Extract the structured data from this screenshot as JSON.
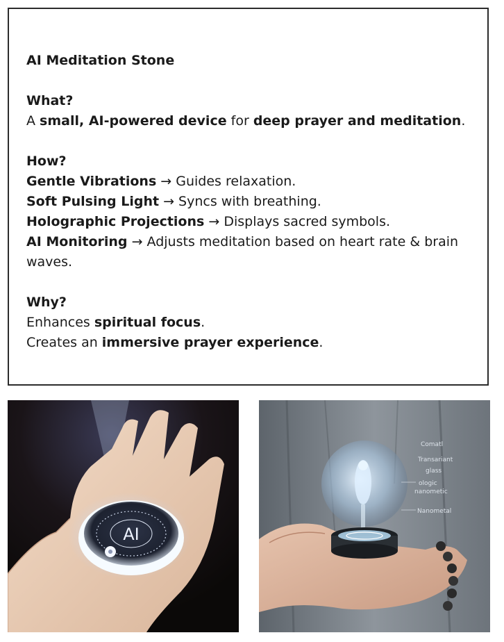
{
  "card": {
    "title": "AI Meditation Stone",
    "what": {
      "heading": "What?",
      "text": [
        {
          "t": "A ",
          "b": false
        },
        {
          "t": "small, AI-powered device",
          "b": true
        },
        {
          "t": " for ",
          "b": false
        },
        {
          "t": "deep prayer and meditation",
          "b": true
        },
        {
          "t": ".",
          "b": false
        }
      ]
    },
    "how": {
      "heading": "How?",
      "items": [
        {
          "label": "Gentle Vibrations",
          "desc": " → Guides relaxation."
        },
        {
          "label": "Soft Pulsing Light",
          "desc": " → Syncs with breathing."
        },
        {
          "label": "Holographic Projections",
          "desc": " → Displays sacred symbols."
        },
        {
          "label": "AI Monitoring",
          "desc": " → Adjusts meditation based on heart rate & brain waves."
        }
      ]
    },
    "why": {
      "heading": "Why?",
      "lines": [
        [
          {
            "t": "Enhances ",
            "b": false
          },
          {
            "t": "spiritual focus",
            "b": true
          },
          {
            "t": ".",
            "b": false
          }
        ],
        [
          {
            "t": "Creates an ",
            "b": false
          },
          {
            "t": "immersive prayer experience",
            "b": true
          },
          {
            "t": ".",
            "b": false
          }
        ]
      ]
    }
  },
  "images": {
    "left": {
      "stone_label": "AI"
    },
    "right": {
      "annotations": [
        "Comatl",
        "Transariant",
        "glass",
        "ologic",
        "nanometic",
        "Nanometal"
      ]
    }
  },
  "colors": {
    "border": "#2b2b2b",
    "left_bg": "#0e0b0a",
    "skin": "#e9cbb2",
    "glow": "#cfe8ff",
    "right_bg": "#7f8790"
  }
}
